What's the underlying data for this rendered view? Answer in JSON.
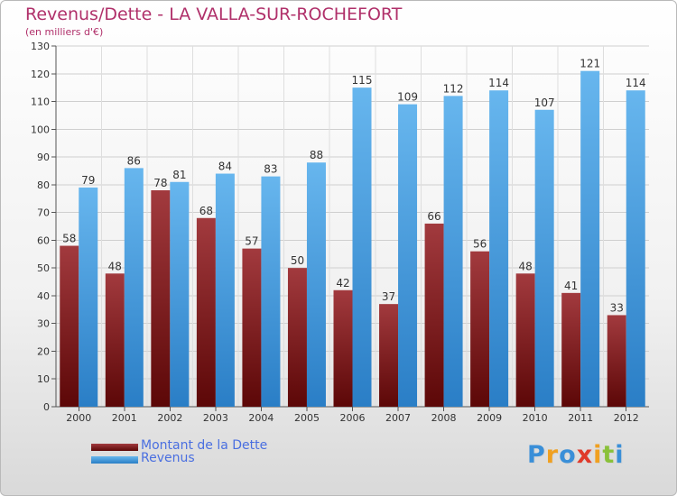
{
  "title": "Revenus/Dette - LA VALLA-SUR-ROCHEFORT",
  "subtitle": "(en milliers d'€)",
  "colors": {
    "title": "#b0306a",
    "dette_dark": "#5c0707",
    "dette_light": "#a23a3e",
    "revenus_dark": "#2a7ec6",
    "revenus_light": "#67b6ee",
    "legend_text": "#4a6fe0"
  },
  "chart_data": {
    "type": "bar",
    "categories": [
      "2000",
      "2001",
      "2002",
      "2003",
      "2004",
      "2005",
      "2006",
      "2007",
      "2008",
      "2009",
      "2010",
      "2011",
      "2012"
    ],
    "series": [
      {
        "name": "Montant de la Dette",
        "values": [
          58,
          48,
          78,
          68,
          57,
          50,
          42,
          37,
          66,
          56,
          48,
          41,
          33
        ]
      },
      {
        "name": "Revenus",
        "values": [
          79,
          86,
          81,
          84,
          83,
          88,
          115,
          109,
          112,
          114,
          107,
          121,
          114
        ]
      }
    ],
    "yticks": [
      0,
      10,
      20,
      30,
      40,
      50,
      60,
      70,
      80,
      90,
      100,
      110,
      120,
      130
    ],
    "ylim": [
      0,
      130
    ],
    "grid": true,
    "legend_position": "bottom-left"
  },
  "legend": [
    {
      "label": "Montant de la Dette",
      "color": "dette"
    },
    {
      "label": "Revenus",
      "color": "revenus"
    }
  ],
  "logo": {
    "letters": [
      "P",
      "r",
      "o",
      "x",
      "i",
      "t",
      "i"
    ],
    "colors": [
      "#3a8fd8",
      "#f0a020",
      "#3a8fd8",
      "#e03a2a",
      "#f0a020",
      "#8ac13a",
      "#3a8fd8"
    ]
  }
}
